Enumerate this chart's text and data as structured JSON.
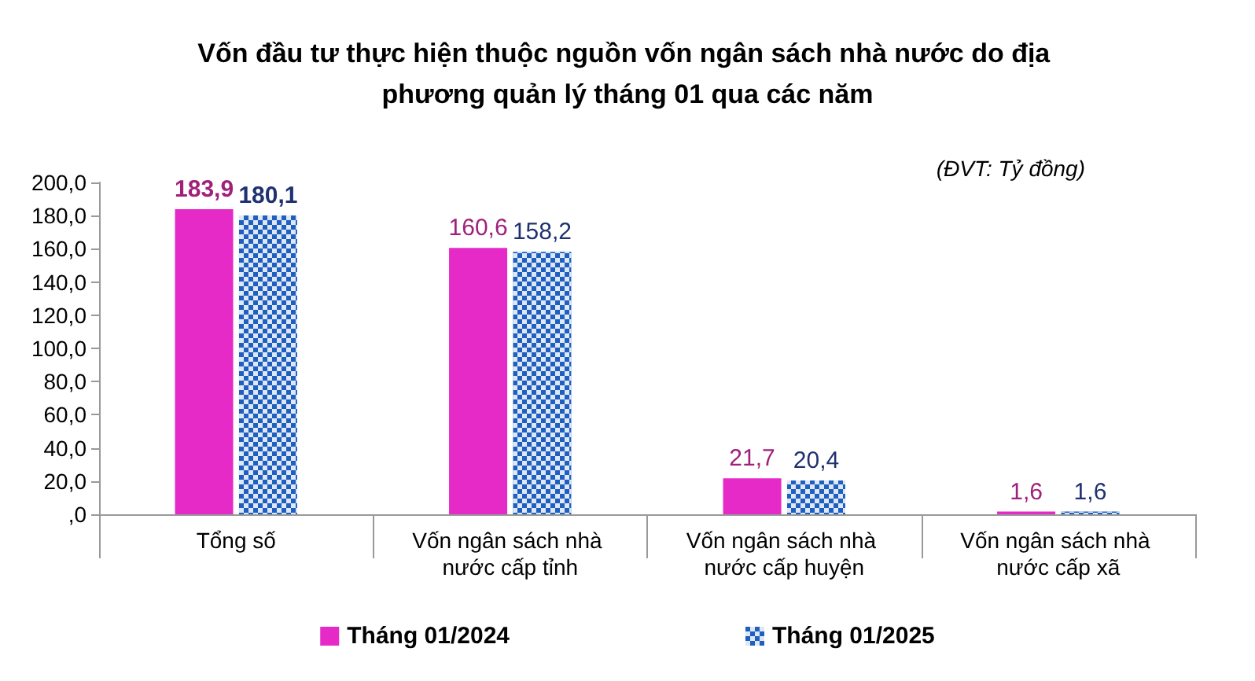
{
  "chart_data": {
    "type": "bar",
    "title": "Vốn đầu tư thực hiện thuộc nguồn vốn ngân sách nhà nước do địa phương quản lý tháng 01 qua các năm",
    "annotations": [
      "(ĐVT: Tỷ đồng)"
    ],
    "categories": [
      "Tổng số",
      "Vốn ngân sách nhà nước cấp tỉnh",
      "Vốn ngân sách nhà nước cấp huyện",
      "Vốn ngân sách nhà nước cấp xã"
    ],
    "series": [
      {
        "name": "Tháng 01/2024",
        "color": "#e62ac8",
        "values": [
          183.9,
          160.6,
          21.7,
          1.6
        ],
        "value_labels": [
          "183,9",
          "160,6",
          "21,7",
          "1,6"
        ]
      },
      {
        "name": "Tháng 01/2025",
        "color": "#1f5fbf",
        "values": [
          180.1,
          158.2,
          20.4,
          1.6
        ],
        "value_labels": [
          "180,1",
          "158,2",
          "20,4",
          "1,6"
        ]
      }
    ],
    "ylim": [
      0,
      200
    ],
    "yticks": [
      {
        "value": 0,
        "label": ",0"
      },
      {
        "value": 20,
        "label": "20,0"
      },
      {
        "value": 40,
        "label": "40,0"
      },
      {
        "value": 60,
        "label": "60,0"
      },
      {
        "value": 80,
        "label": "80,0"
      },
      {
        "value": 100,
        "label": "100,0"
      },
      {
        "value": 120,
        "label": "120,0"
      },
      {
        "value": 140,
        "label": "140,0"
      },
      {
        "value": 160,
        "label": "160,0"
      },
      {
        "value": 180,
        "label": "180,0"
      },
      {
        "value": 200,
        "label": "200,0"
      }
    ],
    "grid": false,
    "legend": "bottom"
  }
}
